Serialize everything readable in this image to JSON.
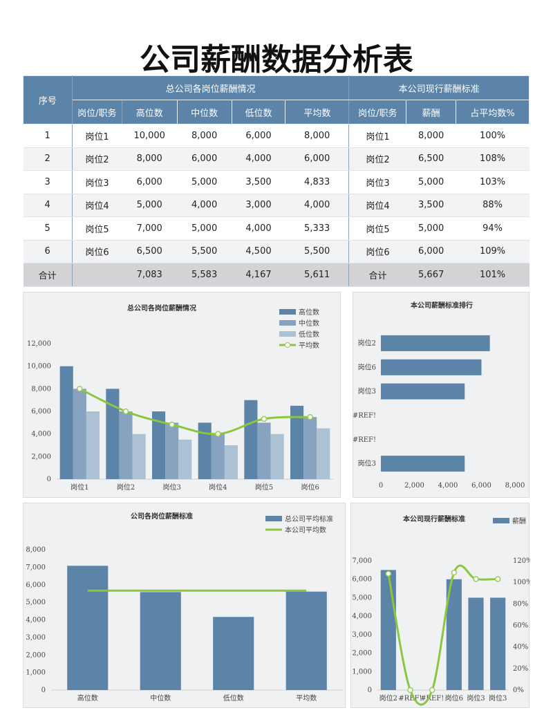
{
  "title": "公司薪酬数据分析表",
  "table": {
    "group_headers": [
      "序号",
      "总公司各岗位薪酬情况",
      "本公司现行薪酬标准"
    ],
    "sub_headers": [
      "岗位/职务",
      "高位数",
      "中位数",
      "低位数",
      "平均数",
      "岗位/职务",
      "薪酬",
      "占平均数%"
    ],
    "rows": [
      [
        "1",
        "岗位1",
        "10,000",
        "8,000",
        "6,000",
        "8,000",
        "岗位1",
        "8,000",
        "100%"
      ],
      [
        "2",
        "岗位2",
        "8,000",
        "6,000",
        "4,000",
        "6,000",
        "岗位2",
        "6,500",
        "108%"
      ],
      [
        "3",
        "岗位3",
        "6,000",
        "5,000",
        "3,500",
        "4,833",
        "岗位3",
        "5,000",
        "103%"
      ],
      [
        "4",
        "岗位4",
        "5,000",
        "4,000",
        "3,000",
        "4,000",
        "岗位4",
        "3,500",
        "88%"
      ],
      [
        "5",
        "岗位5",
        "7,000",
        "5,000",
        "4,000",
        "5,333",
        "岗位5",
        "5,000",
        "94%"
      ],
      [
        "6",
        "岗位6",
        "6,500",
        "5,500",
        "4,500",
        "5,500",
        "岗位6",
        "6,000",
        "109%"
      ],
      [
        "合计",
        "",
        "7,083",
        "5,583",
        "4,167",
        "5,611",
        "合计",
        "5,667",
        "101%"
      ]
    ]
  },
  "colors": {
    "header": "#5b84a8",
    "bar_high": "#5b84a8",
    "bar_mid": "#87a3c0",
    "bar_low": "#adc1d5",
    "line": "#8cc63f"
  },
  "chart_data": [
    {
      "type": "bar",
      "title": "总公司各岗位薪酬情况",
      "categories": [
        "岗位1",
        "岗位2",
        "岗位3",
        "岗位4",
        "岗位5",
        "岗位6"
      ],
      "series": [
        {
          "name": "高位数",
          "values": [
            10000,
            8000,
            6000,
            5000,
            7000,
            6500
          ]
        },
        {
          "name": "中位数",
          "values": [
            8000,
            6000,
            5000,
            4000,
            5000,
            5500
          ]
        },
        {
          "name": "低位数",
          "values": [
            6000,
            4000,
            3500,
            3000,
            4000,
            4500
          ]
        },
        {
          "name": "平均数",
          "type": "line",
          "values": [
            8000,
            6000,
            4833,
            4000,
            5333,
            5500
          ]
        }
      ],
      "ylim": [
        0,
        12000
      ],
      "yticks": [
        "0",
        "2,000",
        "4,000",
        "6,000",
        "8,000",
        "10,000",
        "12,000"
      ],
      "legend": "top-right"
    },
    {
      "type": "bar",
      "orientation": "horizontal",
      "title": "本公司薪酬标准排行",
      "categories": [
        "岗位2",
        "岗位6",
        "岗位3",
        "#REF!",
        "#REF!",
        "岗位3"
      ],
      "values": [
        6500,
        6000,
        5000,
        0,
        0,
        5000
      ],
      "xlim": [
        0,
        8000
      ],
      "xticks": [
        "0",
        "2,000",
        "4,000",
        "6,000",
        "8,000"
      ]
    },
    {
      "type": "bar",
      "title": "公司各岗位薪酬标准",
      "categories": [
        "高位数",
        "中位数",
        "低位数",
        "平均数"
      ],
      "series": [
        {
          "name": "总公司平均标准",
          "values": [
            7083,
            5583,
            4167,
            5611
          ]
        },
        {
          "name": "本公司平均数",
          "type": "line",
          "values": [
            5667,
            5667,
            5667,
            5667
          ]
        }
      ],
      "ylim": [
        0,
        8000
      ],
      "yticks": [
        "0",
        "1,000",
        "2,000",
        "3,000",
        "4,000",
        "5,000",
        "6,000",
        "7,000",
        "8,000"
      ],
      "legend": "top-right"
    },
    {
      "type": "bar",
      "title": "本公司现行薪酬标准",
      "categories": [
        "岗位2",
        "#REF!",
        "#REF!",
        "岗位6",
        "岗位3",
        "岗位3"
      ],
      "series": [
        {
          "name": "薪酬",
          "values": [
            6500,
            0,
            0,
            6000,
            5000,
            5000
          ]
        },
        {
          "type": "line",
          "axis": "secondary",
          "values": [
            108,
            0,
            0,
            109,
            103,
            103
          ]
        }
      ],
      "ylim": [
        0,
        7000
      ],
      "yticks": [
        "0",
        "1,000",
        "2,000",
        "3,000",
        "4,000",
        "5,000",
        "6,000",
        "7,000"
      ],
      "y2lim": [
        0,
        120
      ],
      "y2ticks": [
        "0%",
        "20%",
        "40%",
        "60%",
        "80%",
        "100%",
        "120%"
      ],
      "legend": "top-right"
    }
  ]
}
